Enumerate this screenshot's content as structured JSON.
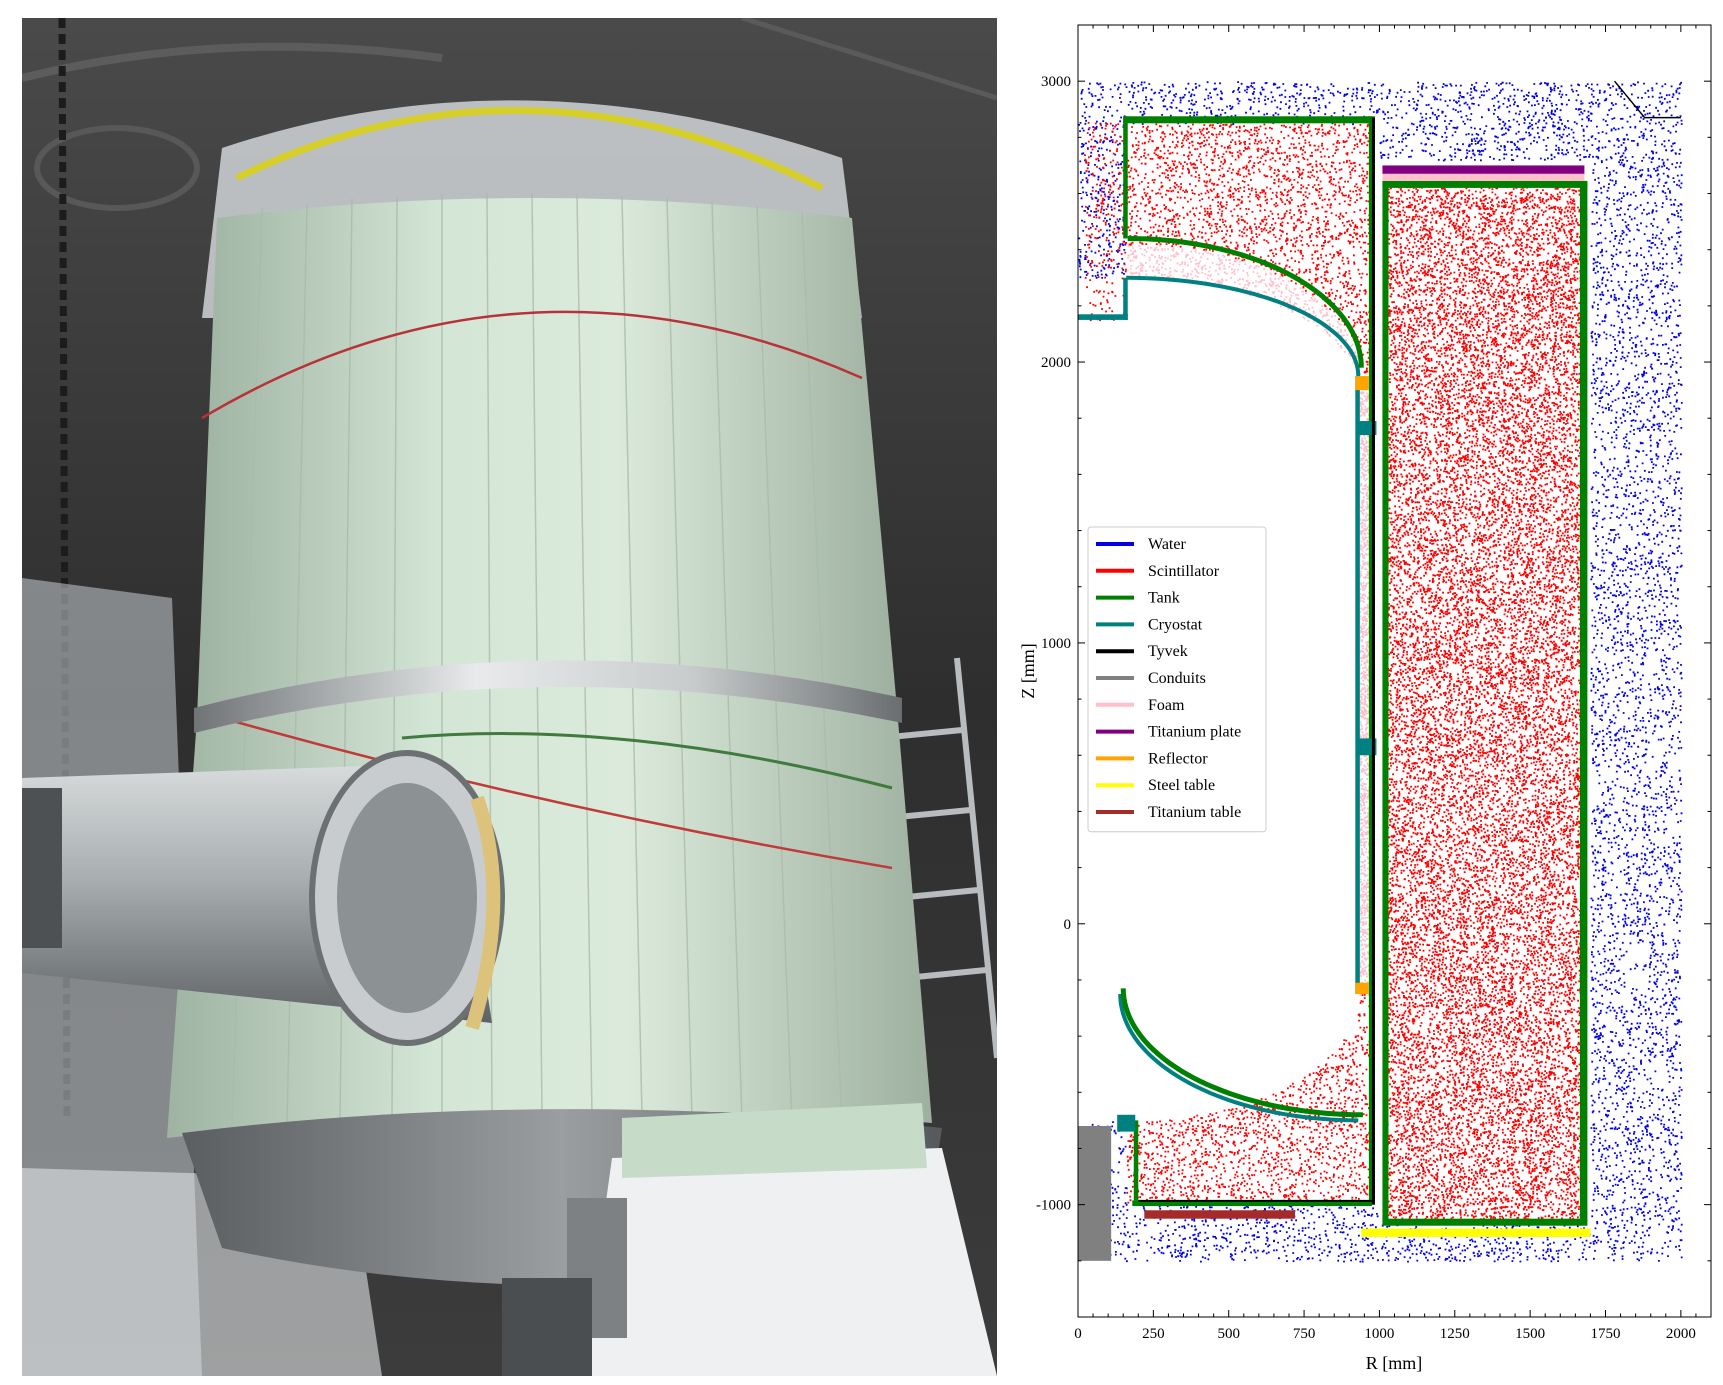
{
  "photo": {
    "subject": "insulated-cryostat-tank",
    "colors": {
      "background": "#3a3a3a",
      "insulation": "#cfe3d2",
      "steel": "#9ea3a5",
      "wrap": "#e9ecee"
    }
  },
  "chart_data": {
    "type": "scatter",
    "xlabel": "R [mm]",
    "ylabel": "Z [mm]",
    "xlim": [
      0,
      2100
    ],
    "ylim": [
      -1400,
      3200
    ],
    "xticks": [
      0,
      250,
      500,
      750,
      1000,
      1250,
      1500,
      1750,
      2000
    ],
    "yticks": [
      -1000,
      0,
      1000,
      2000,
      3000
    ],
    "grid": false,
    "legend_position": "center-left",
    "series": [
      {
        "name": "Water",
        "color": "#0000e6"
      },
      {
        "name": "Scintillator",
        "color": "#ff0000"
      },
      {
        "name": "Tank",
        "color": "#008000"
      },
      {
        "name": "Cryostat",
        "color": "#008080"
      },
      {
        "name": "Tyvek",
        "color": "#000000"
      },
      {
        "name": "Conduits",
        "color": "#808080"
      },
      {
        "name": "Foam",
        "color": "#ffc0cb"
      },
      {
        "name": "Titanium plate",
        "color": "#800080"
      },
      {
        "name": "Reflector",
        "color": "#ffa500"
      },
      {
        "name": "Steel table",
        "color": "#ffff00"
      },
      {
        "name": "Titanium table",
        "color": "#a52a2a"
      }
    ],
    "regions": {
      "water": {
        "r": [
          0,
          2000
        ],
        "z": [
          -1200,
          3000
        ]
      },
      "scintillator_inner": {
        "top_z": 2850,
        "r_left": 160,
        "r_right": 975,
        "bottom_z": -1000
      },
      "scintillator_main": {
        "r": [
          1020,
          1680
        ],
        "z": [
          -1050,
          2640
        ]
      },
      "foam_column": {
        "r": [
          930,
          965
        ],
        "z": [
          -250,
          1950
        ]
      },
      "titanium_plate": {
        "r": [
          1010,
          1680
        ],
        "z": [
          2670,
          2700
        ]
      },
      "steel_table": {
        "r": [
          940,
          1700
        ],
        "z": [
          -1115,
          -1085
        ]
      },
      "titanium_table": {
        "r": [
          220,
          720
        ],
        "z": [
          -1050,
          -1020
        ]
      },
      "conduits": {
        "r": [
          0,
          110
        ],
        "z": [
          -1200,
          -720
        ]
      }
    }
  }
}
